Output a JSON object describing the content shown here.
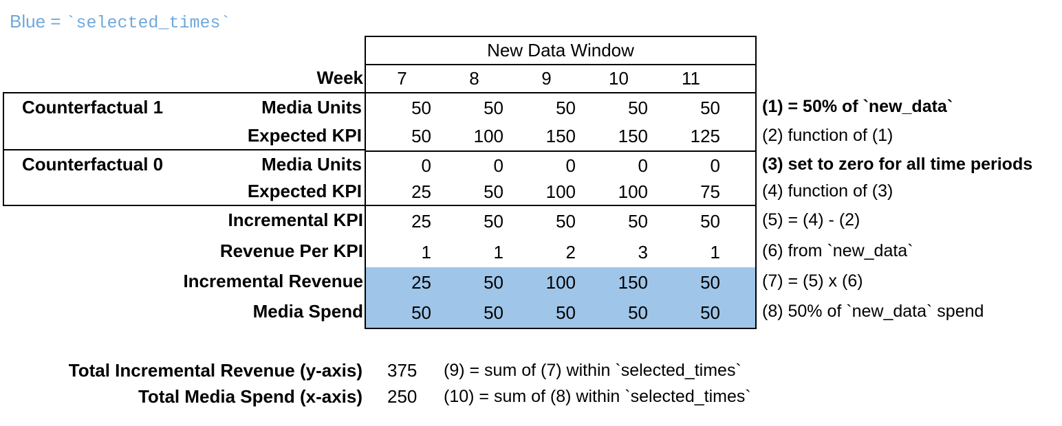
{
  "title": {
    "prefix": "Blue =",
    "code": "`selected_times`"
  },
  "colors": {
    "highlight": "#9fc5e8",
    "title_blue": "#6fa8dc"
  },
  "table": {
    "header": "New Data Window",
    "week_label": "Week",
    "weeks": [
      "7",
      "8",
      "9",
      "10",
      "11"
    ],
    "group1_label": "Counterfactual 1",
    "group0_label": "Counterfactual 0",
    "rows": [
      {
        "label": "Media Units",
        "values": [
          "50",
          "50",
          "50",
          "50",
          "50"
        ],
        "note": "(1) = 50% of `new_data`"
      },
      {
        "label": "Expected KPI",
        "values": [
          "50",
          "100",
          "150",
          "150",
          "125"
        ],
        "note": "(2) function of (1)"
      },
      {
        "label": "Media Units",
        "values": [
          "0",
          "0",
          "0",
          "0",
          "0"
        ],
        "note": "(3) set to zero for all time periods"
      },
      {
        "label": "Expected KPI",
        "values": [
          "25",
          "50",
          "100",
          "100",
          "75"
        ],
        "note": "(4) function of (3)"
      },
      {
        "label": "Incremental KPI",
        "values": [
          "25",
          "50",
          "50",
          "50",
          "50"
        ],
        "note": "(5) = (4) - (2)"
      },
      {
        "label": "Revenue Per KPI",
        "values": [
          "1",
          "1",
          "2",
          "3",
          "1"
        ],
        "note": "(6) from `new_data`"
      },
      {
        "label": "Incremental Revenue",
        "values": [
          "25",
          "50",
          "100",
          "150",
          "50"
        ],
        "note": "(7) = (5) x (6)"
      },
      {
        "label": "Media Spend",
        "values": [
          "50",
          "50",
          "50",
          "50",
          "50"
        ],
        "note": "(8) 50% of `new_data` spend"
      }
    ]
  },
  "totals": [
    {
      "label": "Total Incremental Revenue (y-axis)",
      "value": "375",
      "note": "(9) = sum of (7) within `selected_times`"
    },
    {
      "label": "Total Media Spend (x-axis)",
      "value": "250",
      "note": "(10) = sum of (8) within `selected_times`"
    }
  ]
}
